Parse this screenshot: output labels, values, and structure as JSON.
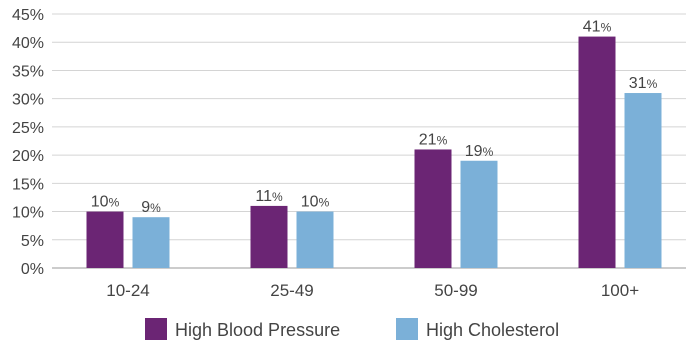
{
  "chart_data": {
    "type": "bar",
    "categories": [
      "10-24",
      "25-49",
      "50-99",
      "100+"
    ],
    "series": [
      {
        "name": "High Blood Pressure",
        "values": [
          10,
          11,
          21,
          41
        ],
        "color": "#6b2574"
      },
      {
        "name": "High Cholesterol",
        "values": [
          9,
          10,
          19,
          31
        ],
        "color": "#7bb0d8"
      }
    ],
    "ylim": [
      0,
      45
    ],
    "yticks": [
      0,
      5,
      10,
      15,
      20,
      25,
      30,
      35,
      40,
      45
    ],
    "ytick_suffix": "%",
    "value_suffix": "%",
    "grid": true,
    "legend_position": "bottom",
    "title": "",
    "xlabel": "",
    "ylabel": ""
  }
}
